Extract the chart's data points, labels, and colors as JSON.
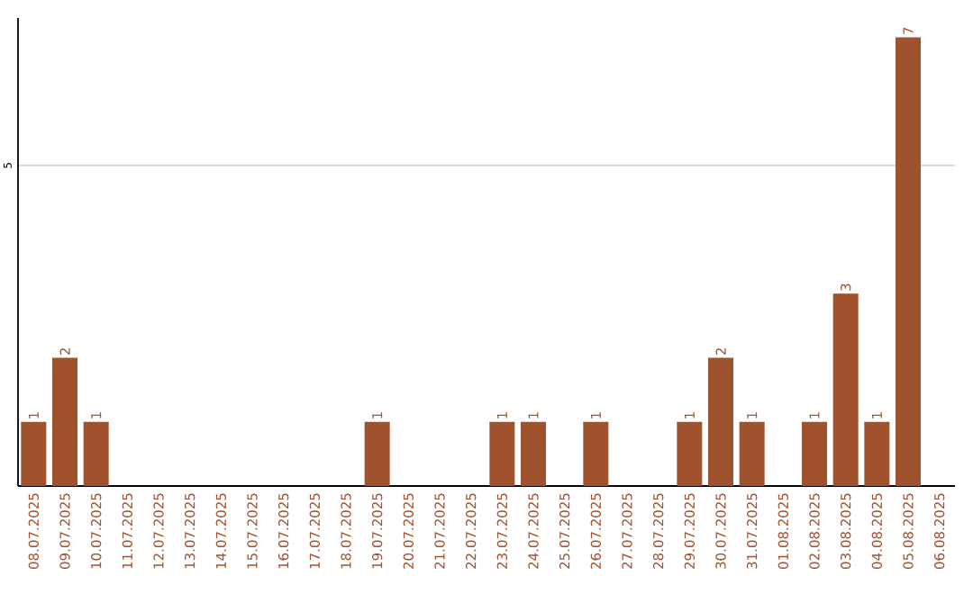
{
  "chart_data": {
    "type": "bar",
    "categories": [
      "08.07.2025",
      "09.07.2025",
      "10.07.2025",
      "11.07.2025",
      "12.07.2025",
      "13.07.2025",
      "14.07.2025",
      "15.07.2025",
      "16.07.2025",
      "17.07.2025",
      "18.07.2025",
      "19.07.2025",
      "20.07.2025",
      "21.07.2025",
      "22.07.2025",
      "23.07.2025",
      "24.07.2025",
      "25.07.2025",
      "26.07.2025",
      "27.07.2025",
      "28.07.2025",
      "29.07.2025",
      "30.07.2025",
      "31.07.2025",
      "01.08.2025",
      "02.08.2025",
      "03.08.2025",
      "04.08.2025",
      "05.08.2025",
      "06.08.2025"
    ],
    "values": [
      1,
      2,
      1,
      0,
      0,
      0,
      0,
      0,
      0,
      0,
      0,
      1,
      0,
      0,
      0,
      1,
      1,
      0,
      1,
      0,
      0,
      1,
      2,
      1,
      0,
      1,
      3,
      1,
      7,
      0
    ],
    "value_labels": [
      "1",
      "2",
      "1",
      null,
      null,
      null,
      null,
      null,
      null,
      null,
      null,
      "1",
      null,
      null,
      null,
      "1",
      "1",
      null,
      "1",
      null,
      null,
      "1",
      "2",
      "1",
      null,
      "1",
      "3",
      "1",
      "7",
      null
    ],
    "color": "#a0522d",
    "ylim": [
      0,
      7.3
    ],
    "yticks": [
      5
    ],
    "grid": "y"
  }
}
